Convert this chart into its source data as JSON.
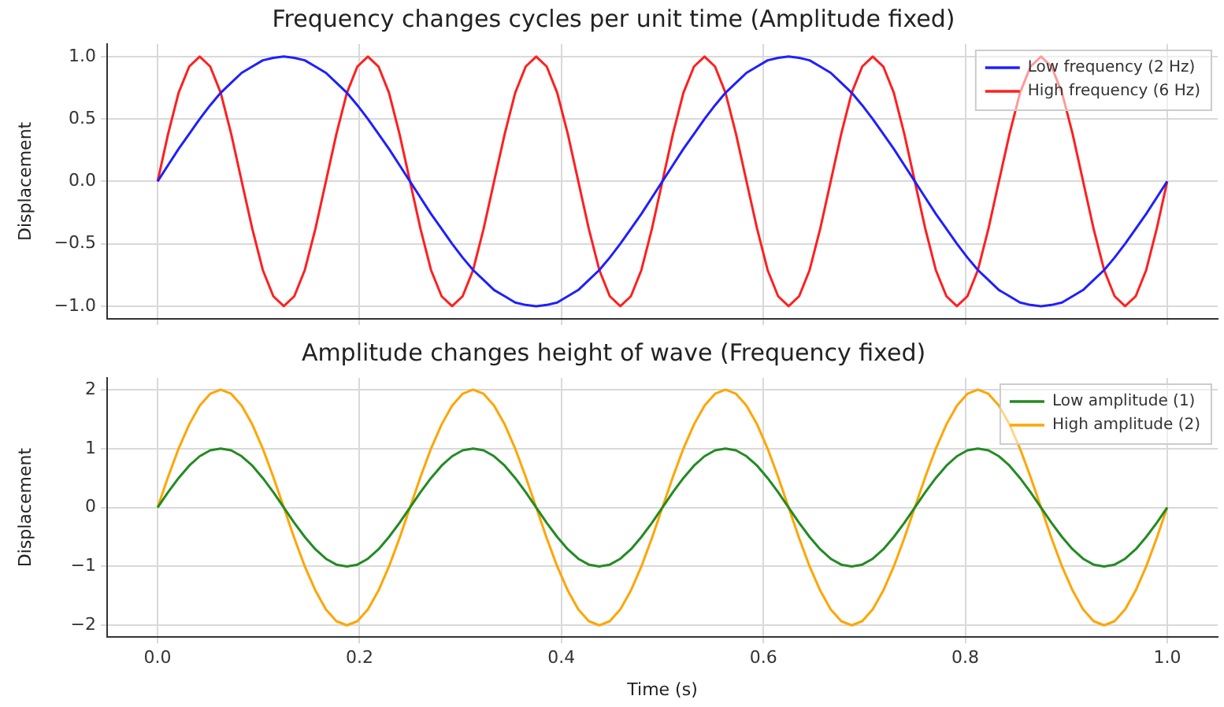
{
  "chart_data": [
    {
      "type": "line",
      "title": "Frequency changes cycles per unit time (Amplitude fixed)",
      "ylabel": "Displacement",
      "xlim": [
        -0.05,
        1.05
      ],
      "xticks": [
        0,
        0.2,
        0.4,
        0.6,
        0.8,
        1
      ],
      "ylim": [
        -1.1,
        1.1
      ],
      "yticks": [
        {
          "value": -1,
          "label": "−1.0"
        },
        {
          "value": -0.5,
          "label": "−0.5"
        },
        {
          "value": 0,
          "label": "0.0"
        },
        {
          "value": 0.5,
          "label": "0.5"
        },
        {
          "value": 1,
          "label": "1.0"
        }
      ],
      "tick_labels": "y",
      "grid": true,
      "legend": "top right",
      "marker": "none",
      "line_style": "solid",
      "x": [
        0,
        0.0104,
        0.0208,
        0.0313,
        0.0417,
        0.0521,
        0.0625,
        0.0729,
        0.0833,
        0.0938,
        0.1042,
        0.1146,
        0.125,
        0.1354,
        0.1458,
        0.1563,
        0.1667,
        0.1771,
        0.1875,
        0.1979,
        0.2083,
        0.2188,
        0.2292,
        0.2396,
        0.25,
        0.2604,
        0.2708,
        0.2813,
        0.2917,
        0.3021,
        0.3125,
        0.3229,
        0.3333,
        0.3438,
        0.3542,
        0.3646,
        0.375,
        0.3854,
        0.3958,
        0.4063,
        0.4167,
        0.4271,
        0.4375,
        0.4479,
        0.4583,
        0.4688,
        0.4792,
        0.4896,
        0.5,
        0.5104,
        0.5208,
        0.5313,
        0.5417,
        0.5521,
        0.5625,
        0.5729,
        0.5833,
        0.5938,
        0.6042,
        0.6146,
        0.625,
        0.6354,
        0.6458,
        0.6563,
        0.6667,
        0.6771,
        0.6875,
        0.6979,
        0.7083,
        0.7188,
        0.7292,
        0.7396,
        0.75,
        0.7604,
        0.7708,
        0.7813,
        0.7917,
        0.8021,
        0.8125,
        0.8229,
        0.8333,
        0.8438,
        0.8542,
        0.8646,
        0.875,
        0.8854,
        0.8958,
        0.9063,
        0.9167,
        0.9271,
        0.9375,
        0.9479,
        0.9583,
        0.9688,
        0.9792,
        0.9896,
        1
      ],
      "series": [
        {
          "name": "Low frequency (2 Hz)",
          "color": "#1f1fff",
          "values": [
            0,
            0.13,
            0.26,
            0.38,
            0.5,
            0.61,
            0.71,
            0.79,
            0.87,
            0.92,
            0.97,
            0.99,
            1,
            0.99,
            0.97,
            0.92,
            0.87,
            0.79,
            0.71,
            0.61,
            0.5,
            0.38,
            0.26,
            0.13,
            0,
            -0.13,
            -0.26,
            -0.38,
            -0.5,
            -0.61,
            -0.71,
            -0.79,
            -0.87,
            -0.92,
            -0.97,
            -0.99,
            -1,
            -0.99,
            -0.97,
            -0.92,
            -0.87,
            -0.79,
            -0.71,
            -0.61,
            -0.5,
            -0.38,
            -0.26,
            -0.13,
            0,
            0.13,
            0.26,
            0.38,
            0.5,
            0.61,
            0.71,
            0.79,
            0.87,
            0.92,
            0.97,
            0.99,
            1,
            0.99,
            0.97,
            0.92,
            0.87,
            0.79,
            0.71,
            0.61,
            0.5,
            0.38,
            0.26,
            0.13,
            0,
            -0.13,
            -0.26,
            -0.38,
            -0.5,
            -0.61,
            -0.71,
            -0.79,
            -0.87,
            -0.92,
            -0.97,
            -0.99,
            -1,
            -0.99,
            -0.97,
            -0.92,
            -0.87,
            -0.79,
            -0.71,
            -0.61,
            -0.5,
            -0.38,
            -0.26,
            -0.13,
            0
          ]
        },
        {
          "name": "High frequency (6 Hz)",
          "color": "#ff1f1f",
          "values": [
            0,
            0.38,
            0.71,
            0.92,
            1,
            0.92,
            0.71,
            0.38,
            0,
            -0.38,
            -0.71,
            -0.92,
            -1,
            -0.92,
            -0.71,
            -0.38,
            0,
            0.38,
            0.71,
            0.92,
            1,
            0.92,
            0.71,
            0.38,
            0,
            -0.38,
            -0.71,
            -0.92,
            -1,
            -0.92,
            -0.71,
            -0.38,
            0,
            0.38,
            0.71,
            0.92,
            1,
            0.92,
            0.71,
            0.38,
            0,
            -0.38,
            -0.71,
            -0.92,
            -1,
            -0.92,
            -0.71,
            -0.38,
            0,
            0.38,
            0.71,
            0.92,
            1,
            0.92,
            0.71,
            0.38,
            0,
            -0.38,
            -0.71,
            -0.92,
            -1,
            -0.92,
            -0.71,
            -0.38,
            0,
            0.38,
            0.71,
            0.92,
            1,
            0.92,
            0.71,
            0.38,
            0,
            -0.38,
            -0.71,
            -0.92,
            -1,
            -0.92,
            -0.71,
            -0.38,
            0,
            0.38,
            0.71,
            0.92,
            1,
            0.92,
            0.71,
            0.38,
            0,
            -0.38,
            -0.71,
            -0.92,
            -1,
            -0.92,
            -0.71,
            -0.38,
            0
          ]
        }
      ]
    },
    {
      "type": "line",
      "title": "Amplitude changes height of wave (Frequency fixed)",
      "xlabel": "Time (s)",
      "ylabel": "Displacement",
      "xlim": [
        -0.05,
        1.05
      ],
      "xticks": [
        {
          "value": 0,
          "label": "0.0"
        },
        {
          "value": 0.2,
          "label": "0.2"
        },
        {
          "value": 0.4,
          "label": "0.4"
        },
        {
          "value": 0.6,
          "label": "0.6"
        },
        {
          "value": 0.8,
          "label": "0.8"
        },
        {
          "value": 1,
          "label": "1.0"
        }
      ],
      "ylim": [
        -2.2,
        2.2
      ],
      "yticks": [
        {
          "value": -2,
          "label": "−2"
        },
        {
          "value": -1,
          "label": "−1"
        },
        0,
        1,
        2
      ],
      "grid": true,
      "legend": "top right",
      "marker": "none",
      "line_style": "solid",
      "x": [
        0,
        0.0104,
        0.0208,
        0.0313,
        0.0417,
        0.0521,
        0.0625,
        0.0729,
        0.0833,
        0.0938,
        0.1042,
        0.1146,
        0.125,
        0.1354,
        0.1458,
        0.1563,
        0.1667,
        0.1771,
        0.1875,
        0.1979,
        0.2083,
        0.2188,
        0.2292,
        0.2396,
        0.25,
        0.2604,
        0.2708,
        0.2813,
        0.2917,
        0.3021,
        0.3125,
        0.3229,
        0.3333,
        0.3438,
        0.3542,
        0.3646,
        0.375,
        0.3854,
        0.3958,
        0.4063,
        0.4167,
        0.4271,
        0.4375,
        0.4479,
        0.4583,
        0.4688,
        0.4792,
        0.4896,
        0.5,
        0.5104,
        0.5208,
        0.5313,
        0.5417,
        0.5521,
        0.5625,
        0.5729,
        0.5833,
        0.5938,
        0.6042,
        0.6146,
        0.625,
        0.6354,
        0.6458,
        0.6563,
        0.6667,
        0.6771,
        0.6875,
        0.6979,
        0.7083,
        0.7188,
        0.7292,
        0.7396,
        0.75,
        0.7604,
        0.7708,
        0.7813,
        0.7917,
        0.8021,
        0.8125,
        0.8229,
        0.8333,
        0.8438,
        0.8542,
        0.8646,
        0.875,
        0.8854,
        0.8958,
        0.9063,
        0.9167,
        0.9271,
        0.9375,
        0.9479,
        0.9583,
        0.9688,
        0.9792,
        0.9896,
        1
      ],
      "series": [
        {
          "name": "Low amplitude (1)",
          "color": "#228b22",
          "values": [
            0,
            0.26,
            0.5,
            0.71,
            0.87,
            0.97,
            1,
            0.97,
            0.87,
            0.71,
            0.5,
            0.26,
            0,
            -0.26,
            -0.5,
            -0.71,
            -0.87,
            -0.97,
            -1,
            -0.97,
            -0.87,
            -0.71,
            -0.5,
            -0.26,
            0,
            0.26,
            0.5,
            0.71,
            0.87,
            0.97,
            1,
            0.97,
            0.87,
            0.71,
            0.5,
            0.26,
            0,
            -0.26,
            -0.5,
            -0.71,
            -0.87,
            -0.97,
            -1,
            -0.97,
            -0.87,
            -0.71,
            -0.5,
            -0.26,
            0,
            0.26,
            0.5,
            0.71,
            0.87,
            0.97,
            1,
            0.97,
            0.87,
            0.71,
            0.5,
            0.26,
            0,
            -0.26,
            -0.5,
            -0.71,
            -0.87,
            -0.97,
            -1,
            -0.97,
            -0.87,
            -0.71,
            -0.5,
            -0.26,
            0,
            0.26,
            0.5,
            0.71,
            0.87,
            0.97,
            1,
            0.97,
            0.87,
            0.71,
            0.5,
            0.26,
            0,
            -0.26,
            -0.5,
            -0.71,
            -0.87,
            -0.97,
            -1,
            -0.97,
            -0.87,
            -0.71,
            -0.5,
            -0.26,
            0
          ]
        },
        {
          "name": "High amplitude (2)",
          "color": "#ffa500",
          "values": [
            0,
            0.52,
            1,
            1.41,
            1.73,
            1.93,
            2,
            1.93,
            1.73,
            1.41,
            1,
            0.52,
            0,
            -0.52,
            -1,
            -1.41,
            -1.73,
            -1.93,
            -2,
            -1.93,
            -1.73,
            -1.41,
            -1,
            -0.52,
            0,
            0.52,
            1,
            1.41,
            1.73,
            1.93,
            2,
            1.93,
            1.73,
            1.41,
            1,
            0.52,
            0,
            -0.52,
            -1,
            -1.41,
            -1.73,
            -1.93,
            -2,
            -1.93,
            -1.73,
            -1.41,
            -1,
            -0.52,
            0,
            0.52,
            1,
            1.41,
            1.73,
            1.93,
            2,
            1.93,
            1.73,
            1.41,
            1,
            0.52,
            0,
            -0.52,
            -1,
            -1.41,
            -1.73,
            -1.93,
            -2,
            -1.93,
            -1.73,
            -1.41,
            -1,
            -0.52,
            0,
            0.52,
            1,
            1.41,
            1.73,
            1.93,
            2,
            1.93,
            1.73,
            1.41,
            1,
            0.52,
            0,
            -0.52,
            -1,
            -1.41,
            -1.73,
            -1.93,
            -2,
            -1.93,
            -1.73,
            -1.41,
            -1,
            -0.52,
            0
          ]
        }
      ]
    }
  ]
}
